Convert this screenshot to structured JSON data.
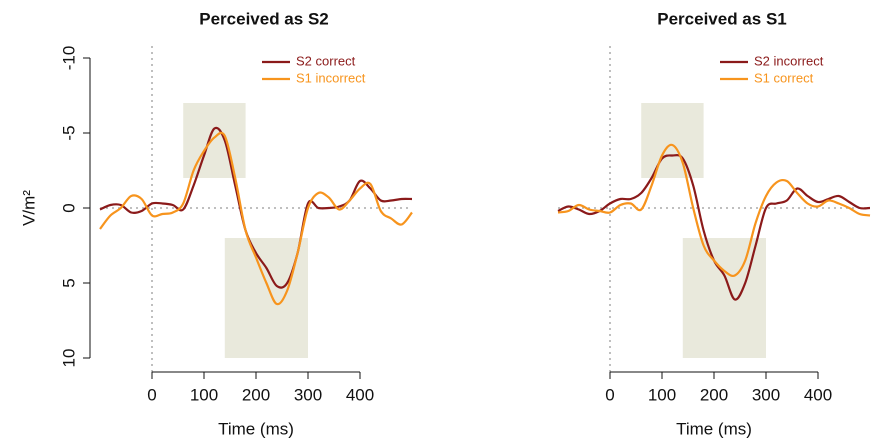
{
  "chart_data": [
    {
      "type": "line",
      "title": "Perceived as S2",
      "xlabel": "Time (ms)",
      "ylabel": "V/m²",
      "x": [
        -100,
        -80,
        -60,
        -40,
        -20,
        0,
        20,
        40,
        60,
        80,
        100,
        120,
        140,
        160,
        180,
        200,
        220,
        240,
        260,
        280,
        300,
        320,
        340,
        360,
        380,
        400,
        420,
        440,
        460,
        480,
        500
      ],
      "series": [
        {
          "name": "S2 correct",
          "color": "#8b1a1a",
          "values": [
            0.1,
            -0.2,
            -0.2,
            0.3,
            0.2,
            -0.3,
            -0.3,
            -0.2,
            0.1,
            -1.5,
            -3.5,
            -5.3,
            -4.5,
            -1.5,
            1.5,
            3.0,
            4.0,
            5.2,
            5.0,
            3.0,
            -0.3,
            0,
            0,
            -0.1,
            -0.5,
            -1.8,
            -1.3,
            -0.5,
            -0.5,
            -0.6,
            -0.6
          ]
        },
        {
          "name": "S1 incorrect",
          "color": "#f7941d",
          "values": [
            1.4,
            0.5,
            0.0,
            -0.8,
            -0.6,
            0.5,
            0.4,
            0.3,
            -0.3,
            -2.5,
            -3.8,
            -4.7,
            -4.8,
            -2.0,
            1.5,
            3.3,
            5.0,
            6.4,
            5.5,
            3.0,
            0.0,
            -1.0,
            -0.7,
            0.1,
            -0.5,
            -1.3,
            -1.6,
            0.2,
            0.7,
            1.1,
            0.3
          ]
        }
      ],
      "xlim": [
        -100,
        500
      ],
      "xticks": [
        0,
        100,
        200,
        300,
        400
      ],
      "ylim": [
        -10,
        10
      ],
      "yticks": [
        -10,
        -5,
        0,
        5,
        10
      ],
      "y_reversed": true,
      "hlines": [
        0
      ],
      "vlines": [
        0
      ],
      "windows": [
        {
          "x": [
            60,
            180
          ],
          "y": [
            -7,
            -2
          ]
        },
        {
          "x": [
            140,
            300
          ],
          "y": [
            2,
            10
          ]
        }
      ],
      "window_color": "#e9e9dc",
      "legend": "top-right"
    },
    {
      "type": "line",
      "title": "Perceived as S1",
      "xlabel": "Time (ms)",
      "x": [
        -100,
        -80,
        -60,
        -40,
        -20,
        0,
        20,
        40,
        60,
        80,
        100,
        120,
        140,
        160,
        180,
        200,
        220,
        240,
        260,
        280,
        300,
        320,
        340,
        360,
        380,
        400,
        420,
        440,
        460,
        480,
        500
      ],
      "series": [
        {
          "name": "S2 incorrect",
          "color": "#8b1a1a",
          "values": [
            0.2,
            -0.1,
            0.1,
            0.4,
            0.2,
            -0.3,
            -0.6,
            -0.6,
            -1.0,
            -2.0,
            -3.3,
            -3.5,
            -3.3,
            -1.5,
            1.5,
            3.5,
            4.5,
            6.1,
            5.0,
            2.5,
            0.0,
            -0.3,
            -0.5,
            -1.3,
            -0.8,
            -0.4,
            -0.6,
            -0.8,
            -0.4,
            0.0,
            0.0
          ]
        },
        {
          "name": "S1 correct",
          "color": "#f7941d",
          "values": [
            0.3,
            0.2,
            -0.2,
            0.1,
            0.2,
            0.3,
            -0.2,
            -0.3,
            0.1,
            -1.5,
            -3.5,
            -4.2,
            -3.0,
            0.0,
            2.5,
            3.5,
            4.2,
            4.5,
            3.5,
            1.0,
            -0.8,
            -1.7,
            -1.8,
            -1.0,
            -0.3,
            -0.1,
            -0.5,
            -0.3,
            0.0,
            0.4,
            0.5
          ]
        }
      ],
      "xlim": [
        -100,
        500
      ],
      "xticks": [
        0,
        100,
        200,
        300,
        400
      ],
      "ylim": [
        -10,
        10
      ],
      "y_reversed": true,
      "hlines": [
        0
      ],
      "vlines": [
        0
      ],
      "windows": [
        {
          "x": [
            60,
            180
          ],
          "y": [
            -7,
            -2
          ]
        },
        {
          "x": [
            140,
            300
          ],
          "y": [
            2,
            10
          ]
        }
      ],
      "window_color": "#e9e9dc",
      "legend": "top-right"
    }
  ]
}
